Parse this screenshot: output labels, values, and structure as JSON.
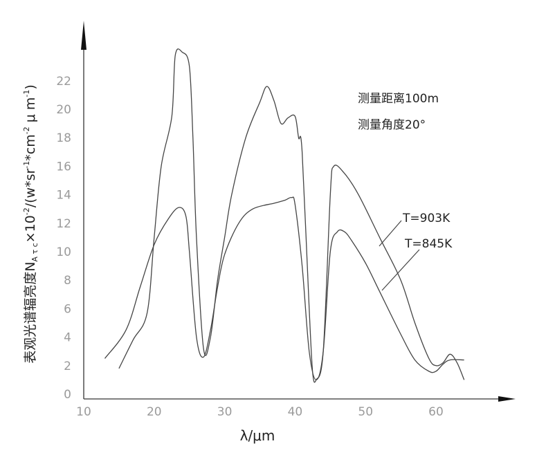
{
  "chart_data": {
    "type": "line",
    "xlabel": "λ/μm",
    "ylabel": "表观光谱辐亮度NAτc×10-2/(w*sr-1*cm-2 μ m-1)",
    "ylabel_parts": {
      "main": "表观光谱辐亮度N",
      "sub1": "A τ c",
      "times": "×10",
      "exp1": "-2",
      "mid": "/(w*sr",
      "exp2": "-1",
      "mid2": "*cm",
      "exp3": "-2",
      "end": " μ m",
      "exp4": "-1",
      "close": ")"
    },
    "xlim": [
      10,
      64
    ],
    "ylim": [
      0,
      24
    ],
    "x_ticks": [
      "10",
      "20",
      "30",
      "40",
      "50",
      "60"
    ],
    "y_ticks": [
      "0",
      "2",
      "4",
      "6",
      "8",
      "10",
      "12",
      "14",
      "16",
      "18",
      "20",
      "22"
    ],
    "annotations": [
      "测量距离100m",
      "测量角度20°"
    ],
    "grid": false,
    "legend": "leader-line labels",
    "series": [
      {
        "name": "T=903K",
        "points": [
          [
            15,
            1.8
          ],
          [
            17,
            3.8
          ],
          [
            19,
            5.7
          ],
          [
            20,
            11
          ],
          [
            21,
            16
          ],
          [
            22.5,
            19.5
          ],
          [
            23,
            23.8
          ],
          [
            24,
            24.0
          ],
          [
            25,
            23.0
          ],
          [
            25.5,
            18
          ],
          [
            26,
            11
          ],
          [
            27,
            3.2
          ],
          [
            28,
            4.0
          ],
          [
            29,
            8
          ],
          [
            30,
            11
          ],
          [
            31,
            14
          ],
          [
            33,
            18
          ],
          [
            35,
            20.5
          ],
          [
            36,
            21.6
          ],
          [
            37,
            20.6
          ],
          [
            38,
            19.0
          ],
          [
            39,
            19.4
          ],
          [
            40,
            19.5
          ],
          [
            40.5,
            18.0
          ],
          [
            41,
            17.0
          ],
          [
            42,
            6
          ],
          [
            42.5,
            1.5
          ],
          [
            43,
            1.0
          ],
          [
            44,
            3
          ],
          [
            45,
            14
          ],
          [
            45.5,
            16.0
          ],
          [
            47,
            15.5
          ],
          [
            49,
            14
          ],
          [
            52,
            11
          ],
          [
            55,
            8
          ],
          [
            57,
            5
          ],
          [
            59,
            2.5
          ],
          [
            60,
            2.0
          ],
          [
            61,
            2.2
          ],
          [
            62,
            2.8
          ],
          [
            63,
            2.2
          ],
          [
            64,
            1.0
          ]
        ]
      },
      {
        "name": "T=845K",
        "points": [
          [
            13,
            2.5
          ],
          [
            16,
            4.5
          ],
          [
            18,
            7.5
          ],
          [
            20,
            10.5
          ],
          [
            22,
            12.3
          ],
          [
            23.5,
            13.1
          ],
          [
            24.5,
            12.5
          ],
          [
            25,
            10
          ],
          [
            26,
            4
          ],
          [
            27,
            2.6
          ],
          [
            28,
            4.5
          ],
          [
            29,
            7.5
          ],
          [
            30,
            9.8
          ],
          [
            32,
            12.0
          ],
          [
            34,
            13.0
          ],
          [
            37,
            13.4
          ],
          [
            38.5,
            13.6
          ],
          [
            39.5,
            13.8
          ],
          [
            40,
            13.3
          ],
          [
            41,
            9
          ],
          [
            42,
            3
          ],
          [
            43,
            1.0
          ],
          [
            44,
            3
          ],
          [
            45,
            10
          ],
          [
            46,
            11.4
          ],
          [
            47,
            11.4
          ],
          [
            48,
            10.8
          ],
          [
            50,
            9.2
          ],
          [
            52,
            7.2
          ],
          [
            55,
            4.2
          ],
          [
            57,
            2.4
          ],
          [
            59,
            1.6
          ],
          [
            60,
            1.6
          ],
          [
            61,
            2.1
          ],
          [
            62,
            2.4
          ],
          [
            64,
            2.4
          ]
        ]
      }
    ]
  }
}
